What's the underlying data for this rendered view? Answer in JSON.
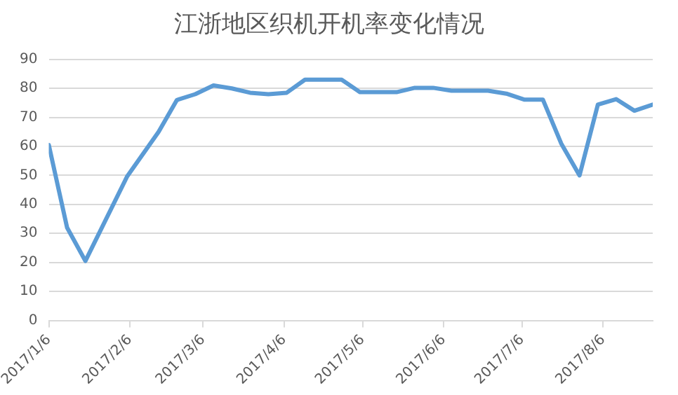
{
  "chart_data": {
    "type": "line",
    "title": "江浙地区织机开机率变化情况",
    "x": [
      "2017-01-06",
      "2017-01-13",
      "2017-01-20",
      "2017-02-05",
      "2017-02-17",
      "2017-02-24",
      "2017-03-03",
      "2017-03-10",
      "2017-03-17",
      "2017-03-24",
      "2017-03-31",
      "2017-04-07",
      "2017-04-14",
      "2017-04-21",
      "2017-04-28",
      "2017-05-05",
      "2017-05-12",
      "2017-05-19",
      "2017-05-26",
      "2017-06-02",
      "2017-06-09",
      "2017-06-16",
      "2017-06-23",
      "2017-06-30",
      "2017-07-07",
      "2017-07-14",
      "2017-07-21",
      "2017-07-28",
      "2017-08-04",
      "2017-08-11",
      "2017-08-18",
      "2017-08-25"
    ],
    "series": [
      {
        "color": "#5b9bd5",
        "values": [
          60.5,
          32,
          20.5,
          49.7,
          65,
          76,
          78,
          81,
          80,
          78.5,
          78,
          78.5,
          83,
          83,
          83,
          78.7,
          78.7,
          78.7,
          80.2,
          80.2,
          79.2,
          79.2,
          79.2,
          78.2,
          76.1,
          76.1,
          61,
          50,
          74.4,
          76.3,
          72.3,
          74.4
        ]
      }
    ],
    "xlim": [
      "2017-01-06",
      "2017-08-25"
    ],
    "xticks": [
      {
        "value": "2017-01-06",
        "label": "2017/1/6"
      },
      {
        "value": "2017-02-06",
        "label": "2017/2/6"
      },
      {
        "value": "2017-03-06",
        "label": "2017/3/6"
      },
      {
        "value": "2017-04-06",
        "label": "2017/4/6"
      },
      {
        "value": "2017-05-06",
        "label": "2017/5/6"
      },
      {
        "value": "2017-06-06",
        "label": "2017/6/6"
      },
      {
        "value": "2017-07-06",
        "label": "2017/7/6"
      },
      {
        "value": "2017-08-06",
        "label": "2017/8/6"
      }
    ],
    "ylim": [
      0,
      90
    ],
    "yticks": [
      0,
      10,
      20,
      30,
      40,
      50,
      60,
      70,
      80,
      90
    ],
    "grid": "y",
    "legend": false,
    "marker": "none",
    "line_style": "solid"
  }
}
